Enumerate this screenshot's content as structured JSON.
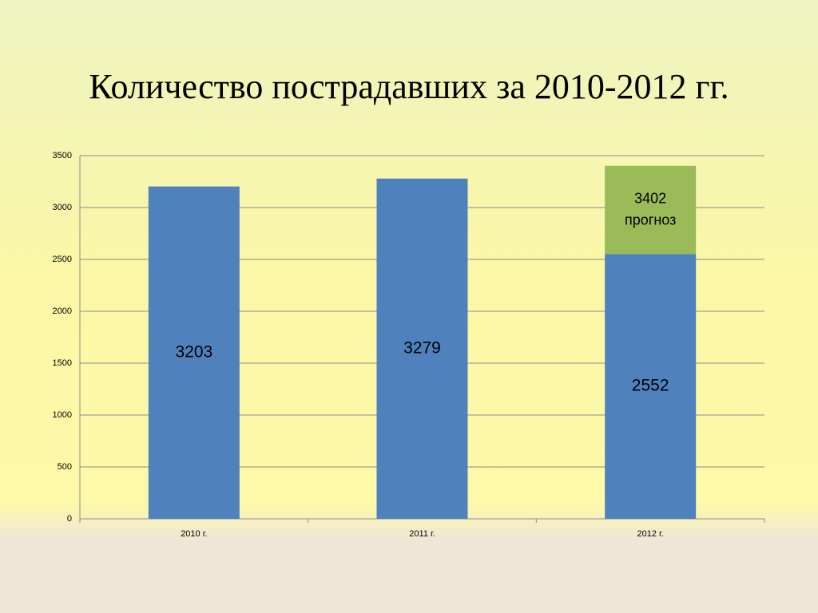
{
  "chart_data": {
    "type": "stacked_bar",
    "title": "Количество пострадавших за 2010-2012 гг.",
    "categories": [
      "2010 г.",
      "2011 г.",
      "2012 г."
    ],
    "series": [
      {
        "color": "#4f81bd",
        "values": [
          3203,
          3279,
          2552
        ]
      },
      {
        "name": "прогноз",
        "color": "#9bbb59",
        "values": [
          null,
          null,
          850
        ]
      }
    ],
    "annotation": {
      "value": 3402,
      "label": "прогноз"
    },
    "ylim": [
      0,
      3500
    ],
    "yticks": [
      0,
      500,
      1000,
      1500,
      2000,
      2500,
      3000,
      3500
    ],
    "grid": true
  }
}
